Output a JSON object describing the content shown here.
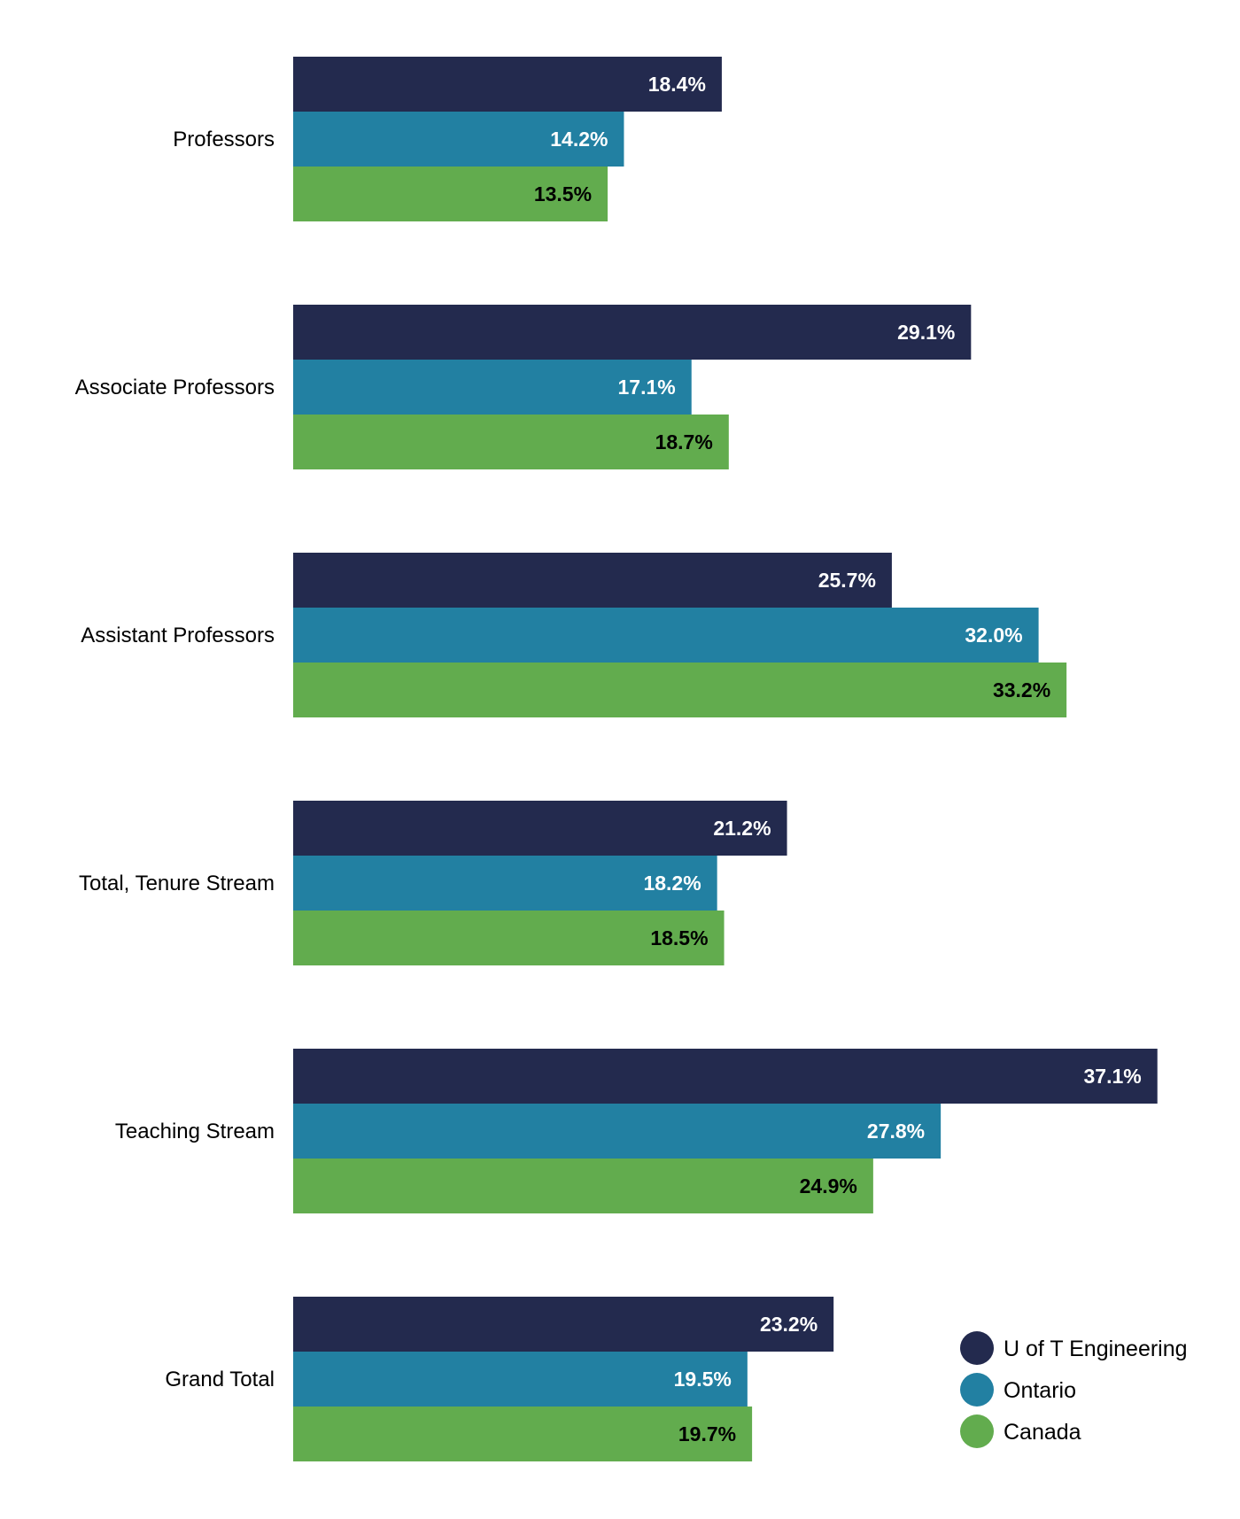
{
  "chart_data": {
    "type": "bar",
    "orientation": "horizontal",
    "title": "",
    "xlabel": "",
    "ylabel": "",
    "categories": [
      "Professors",
      "Associate Professors",
      "Assistant Professors",
      "Total, Tenure Stream",
      "Teaching Stream",
      "Grand Total"
    ],
    "series": [
      {
        "name": "U of T Engineering",
        "color": "#232a4e",
        "label_color": "#ffffff",
        "values": [
          18.4,
          29.1,
          25.7,
          21.2,
          37.1,
          23.2
        ],
        "labels": [
          "18.4%",
          "29.1%",
          "25.7%",
          "21.2%",
          "37.1%",
          "23.2%"
        ]
      },
      {
        "name": "Ontario",
        "color": "#2280a2",
        "label_color": "#ffffff",
        "values": [
          14.2,
          17.1,
          32.0,
          18.2,
          27.8,
          19.5
        ],
        "labels": [
          "14.2%",
          "17.1%",
          "32.0%",
          "18.2%",
          "27.8%",
          "19.5%"
        ]
      },
      {
        "name": "Canada",
        "color": "#62ac4e",
        "label_color": "#000000",
        "values": [
          13.5,
          18.7,
          33.2,
          18.5,
          24.9,
          19.7
        ],
        "labels": [
          "13.5%",
          "18.7%",
          "33.2%",
          "18.5%",
          "24.9%",
          "19.7%"
        ]
      }
    ],
    "value_unit": "%",
    "legend_position": "bottom-right",
    "grid": false
  }
}
